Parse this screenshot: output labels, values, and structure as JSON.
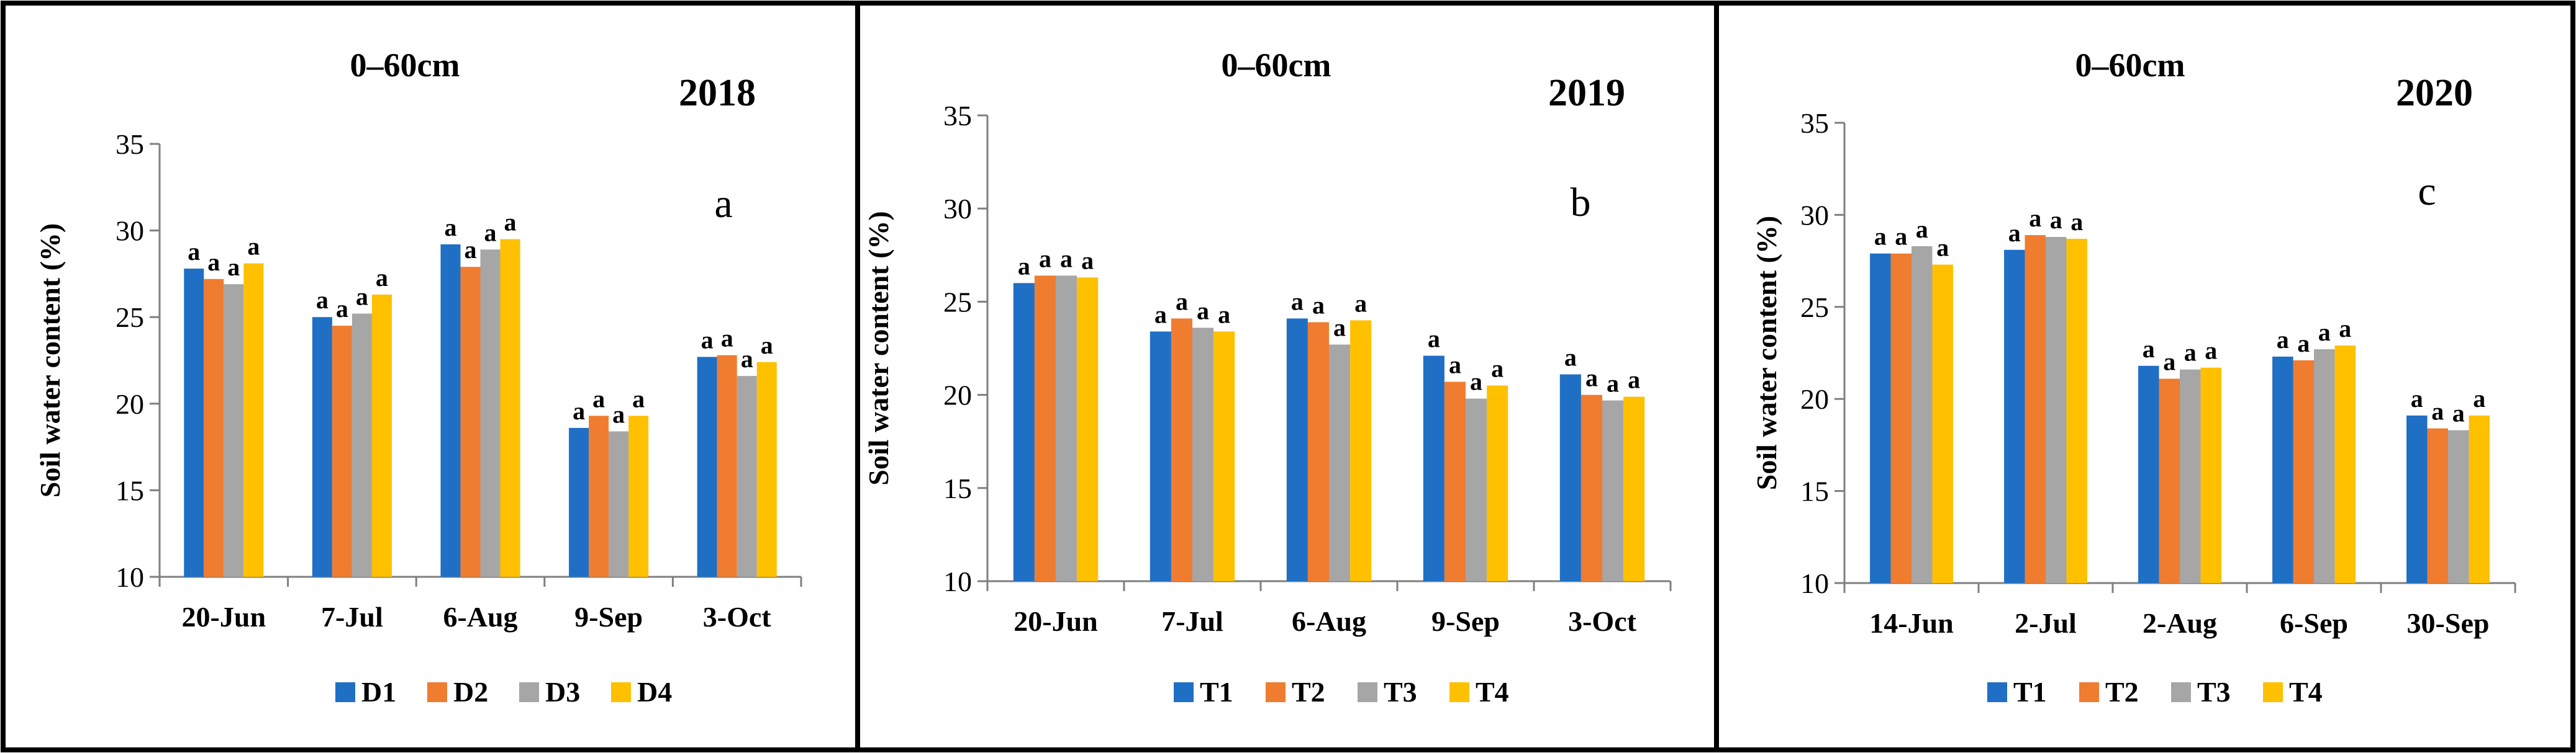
{
  "colors": {
    "series": [
      "#1F6FC5",
      "#F07C30",
      "#A6A6A6",
      "#FFC000"
    ],
    "axis": "#7f7f7f",
    "frame": "#000000",
    "text": "#000000"
  },
  "chart_data": [
    {
      "type": "bar",
      "panel_label": "a",
      "title": "0–60cm",
      "year": "2018",
      "ylabel": "Soil water content (%)",
      "xlabel": "",
      "ylim": [
        10,
        35
      ],
      "yticks": [
        10,
        15,
        20,
        25,
        30,
        35
      ],
      "grid": false,
      "legend_position": "bottom",
      "categories": [
        "20-Jun",
        "7-Jul",
        "6-Aug",
        "9-Sep",
        "3-Oct"
      ],
      "series": [
        {
          "name": "D1",
          "values": [
            27.8,
            25.0,
            29.2,
            18.6,
            22.7
          ],
          "labels": [
            "a",
            "a",
            "a",
            "a",
            "a"
          ]
        },
        {
          "name": "D2",
          "values": [
            27.2,
            24.5,
            27.9,
            19.3,
            22.8
          ],
          "labels": [
            "a",
            "a",
            "a",
            "a",
            "a"
          ]
        },
        {
          "name": "D3",
          "values": [
            26.9,
            25.2,
            28.9,
            18.4,
            21.6
          ],
          "labels": [
            "a",
            "a",
            "a",
            "a",
            "a"
          ]
        },
        {
          "name": "D4",
          "values": [
            28.1,
            26.3,
            29.5,
            19.3,
            22.4
          ],
          "labels": [
            "a",
            "a",
            "a",
            "a",
            "a"
          ]
        }
      ]
    },
    {
      "type": "bar",
      "panel_label": "b",
      "title": "0–60cm",
      "year": "2019",
      "ylabel": "Soil water content (%)",
      "xlabel": "",
      "ylim": [
        10,
        35
      ],
      "yticks": [
        10,
        15,
        20,
        25,
        30,
        35
      ],
      "grid": false,
      "legend_position": "bottom",
      "categories": [
        "20-Jun",
        "7-Jul",
        "6-Aug",
        "9-Sep",
        "3-Oct"
      ],
      "series": [
        {
          "name": "T1",
          "values": [
            26.0,
            23.4,
            24.1,
            22.1,
            21.1
          ],
          "labels": [
            "a",
            "a",
            "a",
            "a",
            "a"
          ]
        },
        {
          "name": "T2",
          "values": [
            26.4,
            24.1,
            23.9,
            20.7,
            20.0
          ],
          "labels": [
            "a",
            "a",
            "a",
            "a",
            "a"
          ]
        },
        {
          "name": "T3",
          "values": [
            26.4,
            23.6,
            22.7,
            19.8,
            19.7
          ],
          "labels": [
            "a",
            "a",
            "a",
            "a",
            "a"
          ]
        },
        {
          "name": "T4",
          "values": [
            26.3,
            23.4,
            24.0,
            20.5,
            19.9
          ],
          "labels": [
            "a",
            "a",
            "a",
            "a",
            "a"
          ]
        }
      ]
    },
    {
      "type": "bar",
      "panel_label": "c",
      "title": "0–60cm",
      "year": "2020",
      "ylabel": "Soil water content (%)",
      "xlabel": "",
      "ylim": [
        10,
        35
      ],
      "yticks": [
        10,
        15,
        20,
        25,
        30,
        35
      ],
      "grid": false,
      "legend_position": "bottom",
      "categories": [
        "14-Jun",
        "2-Jul",
        "2-Aug",
        "6-Sep",
        "30-Sep"
      ],
      "series": [
        {
          "name": "T1",
          "values": [
            27.9,
            28.1,
            21.8,
            22.3,
            19.1
          ],
          "labels": [
            "a",
            "a",
            "a",
            "a",
            "a"
          ]
        },
        {
          "name": "T2",
          "values": [
            27.9,
            28.9,
            21.1,
            22.1,
            18.4
          ],
          "labels": [
            "a",
            "a",
            "a",
            "a",
            "a"
          ]
        },
        {
          "name": "T3",
          "values": [
            28.3,
            28.8,
            21.6,
            22.7,
            18.3
          ],
          "labels": [
            "a",
            "a",
            "a",
            "a",
            "a"
          ]
        },
        {
          "name": "T4",
          "values": [
            27.3,
            28.7,
            21.7,
            22.9,
            19.1
          ],
          "labels": [
            "a",
            "a",
            "a",
            "a",
            "a"
          ]
        }
      ]
    }
  ]
}
